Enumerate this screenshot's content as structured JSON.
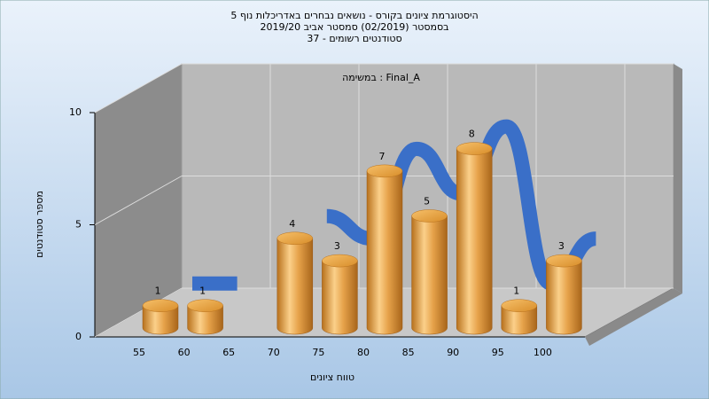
{
  "chart_data": {
    "type": "bar",
    "title": "היסטוגרמת ציונים בקורס - נושאים נבחרים באדריכלות נוף 5",
    "subtitle": "בסמסטר (02/2019)  סמסטר אביב 2019/20",
    "subtitle2": "סטודנטים רשומים - 37",
    "annotation": "במשימה : Final_A",
    "x_label": "טווח ציונים",
    "y_label": "מספר סטודנטים",
    "categories": [
      "55",
      "60",
      "65",
      "70",
      "75",
      "80",
      "85",
      "90",
      "95",
      "100"
    ],
    "series": [
      {
        "name": "Final_A",
        "color": "#e3a040",
        "values": [
          1,
          1,
          null,
          4,
          3,
          7,
          5,
          8,
          1,
          3
        ]
      }
    ],
    "ribbon_color": "#3a6fc8",
    "ylim": [
      0,
      10
    ],
    "yticks": [
      0,
      5,
      10
    ],
    "grid": true
  }
}
